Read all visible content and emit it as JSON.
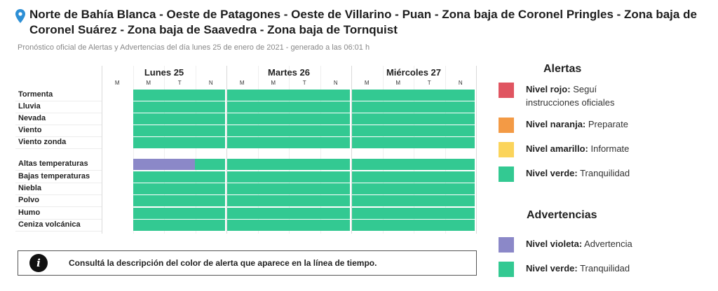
{
  "header": {
    "title": "Norte de Bahía Blanca - Oeste de Patagones - Oeste de Villarino - Puan - Zona baja de Coronel Pringles - Zona baja de Coronel Suárez - Zona baja de Saavedra - Zona baja de Tornquist",
    "subtitle": "Pronóstico oficial de Alertas y Advertencias del día lunes 25 de enero de 2021 - generado a las 06:01 h",
    "icon": "map-pin-icon"
  },
  "colors": {
    "rojo": "#e05561",
    "naranja": "#f39a45",
    "amarillo": "#fbd45b",
    "verde": "#33c992",
    "violeta": "#8b88c8"
  },
  "timeline": {
    "days": [
      {
        "label": "Lunes 25",
        "slots": [
          "M",
          "M",
          "T",
          "N"
        ]
      },
      {
        "label": "Martes 26",
        "slots": [
          "M",
          "M",
          "T",
          "N"
        ]
      },
      {
        "label": "Miércoles 27",
        "slots": [
          "M",
          "M",
          "T",
          "N"
        ]
      }
    ],
    "rows": [
      {
        "label": "Tormenta",
        "status": "verde"
      },
      {
        "label": "Lluvia",
        "status": "verde"
      },
      {
        "label": "Nevada",
        "status": "verde"
      },
      {
        "label": "Viento",
        "status": "verde"
      },
      {
        "label": "Viento zonda",
        "status": "verde"
      },
      {
        "label": "Altas temperaturas",
        "status": "verde",
        "first_period_status": "violeta"
      },
      {
        "label": "Bajas temperaturas",
        "status": "verde"
      },
      {
        "label": "Niebla",
        "status": "verde"
      },
      {
        "label": "Polvo",
        "status": "verde"
      },
      {
        "label": "Humo",
        "status": "verde"
      },
      {
        "label": "Ceniza volcánica",
        "status": "verde"
      }
    ]
  },
  "info": {
    "icon": "info-icon",
    "text": "Consultá la descripción del color de alerta que aparece en la línea de tiempo."
  },
  "legend": {
    "alertas_title": "Alertas",
    "alertas": [
      {
        "bold": "Nivel rojo:",
        "text": " Seguí instrucciones oficiales",
        "color": "rojo"
      },
      {
        "bold": "Nivel naranja:",
        "text": " Preparate",
        "color": "naranja"
      },
      {
        "bold": "Nivel amarillo:",
        "text": " Informate",
        "color": "amarillo"
      },
      {
        "bold": "Nivel verde:",
        "text": " Tranquilidad",
        "color": "verde"
      }
    ],
    "advertencias_title": "Advertencias",
    "advertencias": [
      {
        "bold": "Nivel violeta:",
        "text": " Advertencia",
        "color": "violeta"
      },
      {
        "bold": "Nivel verde:",
        "text": " Tranquilidad",
        "color": "verde"
      }
    ]
  }
}
